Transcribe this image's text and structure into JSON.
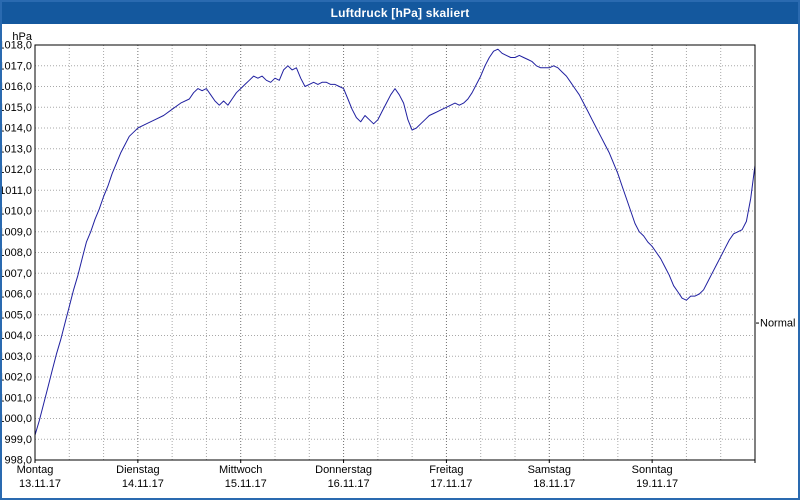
{
  "window": {
    "title": "Luftdruck [hPa] skaliert"
  },
  "colors": {
    "titlebar": "#14589e",
    "titlebar_text": "#ffffff",
    "window_border": "#2a6ab0",
    "plot_background": "#ffffff",
    "axis": "#000000",
    "grid": "#a8a8a8",
    "grid_major": "#707070",
    "line": "#2020a0"
  },
  "chart_data": {
    "type": "line",
    "title": "Luftdruck [hPa] skaliert",
    "y_axis_unit": "hPa",
    "ylim": [
      998,
      1018
    ],
    "y_step": 1,
    "y_tick_labels": [
      "1018,0",
      "1017,0",
      "1016,0",
      "1015,0",
      "1014,0",
      "1013,0",
      "1012,0",
      "1011,0",
      "1010,0",
      "1009,0",
      "1008,0",
      "1007,0",
      "1006,0",
      "1005,0",
      "1004,0",
      "1003,0",
      "1002,0",
      "1001,0",
      "1000,0",
      "999,0",
      "998,0"
    ],
    "xlim": [
      0,
      168
    ],
    "x_grid_step_hours": 8,
    "grid": true,
    "x_days": [
      {
        "name": "Montag",
        "date": "13.11.17"
      },
      {
        "name": "Dienstag",
        "date": "14.11.17"
      },
      {
        "name": "Mittwoch",
        "date": "15.11.17"
      },
      {
        "name": "Donnerstag",
        "date": "16.11.17"
      },
      {
        "name": "Freitag",
        "date": "17.11.17"
      },
      {
        "name": "Samstag",
        "date": "18.11.17"
      },
      {
        "name": "Sonntag",
        "date": "19.11.17"
      }
    ],
    "normal": {
      "label": "Normal",
      "value": 1004.6
    },
    "series": [
      {
        "name": "Luftdruck",
        "color": "#2020a0",
        "points": [
          [
            0,
            999.2
          ],
          [
            1,
            999.9
          ],
          [
            2,
            1000.7
          ],
          [
            3,
            1001.5
          ],
          [
            4,
            1002.3
          ],
          [
            5,
            1003.1
          ],
          [
            6,
            1003.8
          ],
          [
            7,
            1004.6
          ],
          [
            8,
            1005.4
          ],
          [
            9,
            1006.2
          ],
          [
            10,
            1006.9
          ],
          [
            11,
            1007.7
          ],
          [
            12,
            1008.5
          ],
          [
            13,
            1009.0
          ],
          [
            14,
            1009.6
          ],
          [
            15,
            1010.1
          ],
          [
            16,
            1010.7
          ],
          [
            17,
            1011.2
          ],
          [
            18,
            1011.8
          ],
          [
            19,
            1012.3
          ],
          [
            20,
            1012.8
          ],
          [
            21,
            1013.2
          ],
          [
            22,
            1013.6
          ],
          [
            23,
            1013.8
          ],
          [
            24,
            1014.0
          ],
          [
            26,
            1014.2
          ],
          [
            28,
            1014.4
          ],
          [
            30,
            1014.6
          ],
          [
            32,
            1014.9
          ],
          [
            34,
            1015.2
          ],
          [
            36,
            1015.4
          ],
          [
            37,
            1015.7
          ],
          [
            38,
            1015.9
          ],
          [
            39,
            1015.8
          ],
          [
            40,
            1015.9
          ],
          [
            41,
            1015.6
          ],
          [
            42,
            1015.3
          ],
          [
            43,
            1015.1
          ],
          [
            44,
            1015.3
          ],
          [
            45,
            1015.1
          ],
          [
            46,
            1015.4
          ],
          [
            47,
            1015.7
          ],
          [
            48,
            1015.9
          ],
          [
            49,
            1016.1
          ],
          [
            50,
            1016.3
          ],
          [
            51,
            1016.5
          ],
          [
            52,
            1016.4
          ],
          [
            53,
            1016.5
          ],
          [
            54,
            1016.3
          ],
          [
            55,
            1016.2
          ],
          [
            56,
            1016.4
          ],
          [
            57,
            1016.3
          ],
          [
            58,
            1016.8
          ],
          [
            59,
            1017.0
          ],
          [
            60,
            1016.8
          ],
          [
            61,
            1016.9
          ],
          [
            62,
            1016.4
          ],
          [
            63,
            1016.0
          ],
          [
            64,
            1016.1
          ],
          [
            65,
            1016.2
          ],
          [
            66,
            1016.1
          ],
          [
            67,
            1016.2
          ],
          [
            68,
            1016.2
          ],
          [
            69,
            1016.1
          ],
          [
            70,
            1016.1
          ],
          [
            71,
            1016.0
          ],
          [
            72,
            1015.9
          ],
          [
            73,
            1015.4
          ],
          [
            74,
            1014.9
          ],
          [
            75,
            1014.5
          ],
          [
            76,
            1014.3
          ],
          [
            77,
            1014.6
          ],
          [
            78,
            1014.4
          ],
          [
            79,
            1014.2
          ],
          [
            80,
            1014.4
          ],
          [
            81,
            1014.8
          ],
          [
            82,
            1015.2
          ],
          [
            83,
            1015.6
          ],
          [
            84,
            1015.9
          ],
          [
            85,
            1015.6
          ],
          [
            86,
            1015.2
          ],
          [
            87,
            1014.4
          ],
          [
            88,
            1013.9
          ],
          [
            89,
            1014.0
          ],
          [
            90,
            1014.2
          ],
          [
            91,
            1014.4
          ],
          [
            92,
            1014.6
          ],
          [
            93,
            1014.7
          ],
          [
            94,
            1014.8
          ],
          [
            95,
            1014.9
          ],
          [
            96,
            1015.0
          ],
          [
            97,
            1015.1
          ],
          [
            98,
            1015.2
          ],
          [
            99,
            1015.1
          ],
          [
            100,
            1015.2
          ],
          [
            101,
            1015.4
          ],
          [
            102,
            1015.7
          ],
          [
            103,
            1016.1
          ],
          [
            104,
            1016.5
          ],
          [
            105,
            1017.0
          ],
          [
            106,
            1017.4
          ],
          [
            107,
            1017.7
          ],
          [
            108,
            1017.8
          ],
          [
            109,
            1017.6
          ],
          [
            110,
            1017.5
          ],
          [
            111,
            1017.4
          ],
          [
            112,
            1017.4
          ],
          [
            113,
            1017.5
          ],
          [
            114,
            1017.4
          ],
          [
            115,
            1017.3
          ],
          [
            116,
            1017.2
          ],
          [
            117,
            1017.0
          ],
          [
            118,
            1016.9
          ],
          [
            119,
            1016.9
          ],
          [
            120,
            1016.9
          ],
          [
            121,
            1017.0
          ],
          [
            122,
            1016.9
          ],
          [
            123,
            1016.7
          ],
          [
            124,
            1016.5
          ],
          [
            125,
            1016.2
          ],
          [
            126,
            1015.9
          ],
          [
            127,
            1015.6
          ],
          [
            128,
            1015.2
          ],
          [
            129,
            1014.8
          ],
          [
            130,
            1014.4
          ],
          [
            131,
            1014.0
          ],
          [
            132,
            1013.6
          ],
          [
            133,
            1013.2
          ],
          [
            134,
            1012.8
          ],
          [
            135,
            1012.3
          ],
          [
            136,
            1011.8
          ],
          [
            137,
            1011.2
          ],
          [
            138,
            1010.6
          ],
          [
            139,
            1010.0
          ],
          [
            140,
            1009.4
          ],
          [
            141,
            1009.0
          ],
          [
            142,
            1008.8
          ],
          [
            143,
            1008.5
          ],
          [
            144,
            1008.3
          ],
          [
            145,
            1008.0
          ],
          [
            146,
            1007.7
          ],
          [
            147,
            1007.3
          ],
          [
            148,
            1006.9
          ],
          [
            149,
            1006.4
          ],
          [
            150,
            1006.1
          ],
          [
            151,
            1005.8
          ],
          [
            152,
            1005.7
          ],
          [
            153,
            1005.9
          ],
          [
            154,
            1005.9
          ],
          [
            155,
            1006.0
          ],
          [
            156,
            1006.2
          ],
          [
            157,
            1006.6
          ],
          [
            158,
            1007.0
          ],
          [
            159,
            1007.4
          ],
          [
            160,
            1007.8
          ],
          [
            161,
            1008.2
          ],
          [
            162,
            1008.6
          ],
          [
            163,
            1008.9
          ],
          [
            164,
            1009.0
          ],
          [
            165,
            1009.1
          ],
          [
            166,
            1009.5
          ],
          [
            167,
            1010.6
          ],
          [
            168,
            1012.2
          ]
        ]
      }
    ]
  }
}
